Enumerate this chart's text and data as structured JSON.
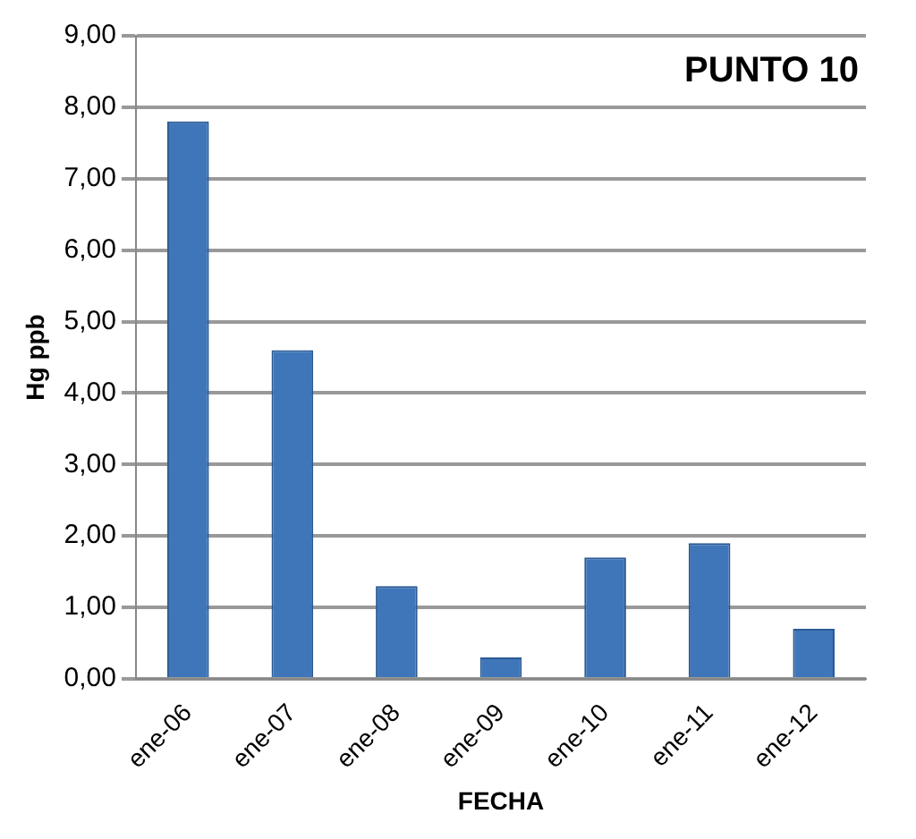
{
  "chart_data": {
    "type": "bar",
    "title": "PUNTO 10",
    "xlabel": "FECHA",
    "ylabel": "Hg ppb",
    "categories": [
      "ene-06",
      "ene-07",
      "ene-08",
      "ene-09",
      "ene-10",
      "ene-11",
      "ene-12"
    ],
    "values": [
      7.8,
      4.6,
      1.3,
      0.3,
      1.7,
      1.9,
      0.7
    ],
    "color": "#3f76b9",
    "ylim": [
      0,
      9
    ],
    "yticks": [
      {
        "value": 0,
        "label": "0,00"
      },
      {
        "value": 1,
        "label": "1,00"
      },
      {
        "value": 2,
        "label": "2,00"
      },
      {
        "value": 3,
        "label": "3,00"
      },
      {
        "value": 4,
        "label": "4,00"
      },
      {
        "value": 5,
        "label": "5,00"
      },
      {
        "value": 6,
        "label": "6,00"
      },
      {
        "value": 7,
        "label": "7,00"
      },
      {
        "value": 8,
        "label": "8,00"
      },
      {
        "value": 9,
        "label": "9,00"
      }
    ],
    "grid": "y"
  }
}
